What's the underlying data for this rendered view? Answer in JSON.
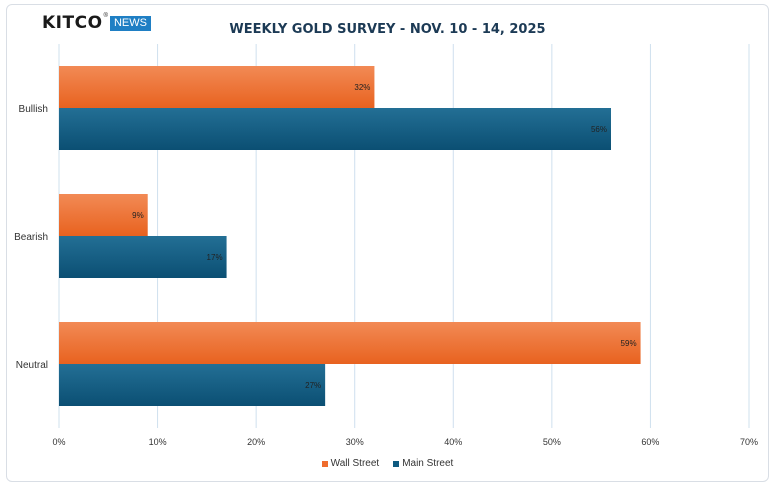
{
  "brand": {
    "name": "KITCO",
    "registered": "®",
    "badge": "NEWS"
  },
  "colors": {
    "wall_street": "#ef6c2e",
    "main_street": "#0e5a80",
    "grid": "#cfe0ee"
  },
  "chart_data": {
    "type": "bar",
    "orientation": "horizontal",
    "title": "WEEKLY GOLD SURVEY - NOV. 10 - 14, 2025",
    "categories": [
      "Bullish",
      "Bearish",
      "Neutral"
    ],
    "series": [
      {
        "name": "Wall Street",
        "values": [
          32,
          9,
          59
        ],
        "labels": [
          "32%",
          "9%",
          "59%"
        ]
      },
      {
        "name": "Main Street",
        "values": [
          56,
          17,
          27
        ],
        "labels": [
          "56%",
          "17%",
          "27%"
        ]
      }
    ],
    "xlim": [
      0,
      70
    ],
    "xticks": [
      0,
      10,
      20,
      30,
      40,
      50,
      60,
      70
    ],
    "xtick_labels": [
      "0%",
      "10%",
      "20%",
      "30%",
      "40%",
      "50%",
      "60%",
      "70%"
    ],
    "grid": true,
    "legend": "bottom-center"
  }
}
